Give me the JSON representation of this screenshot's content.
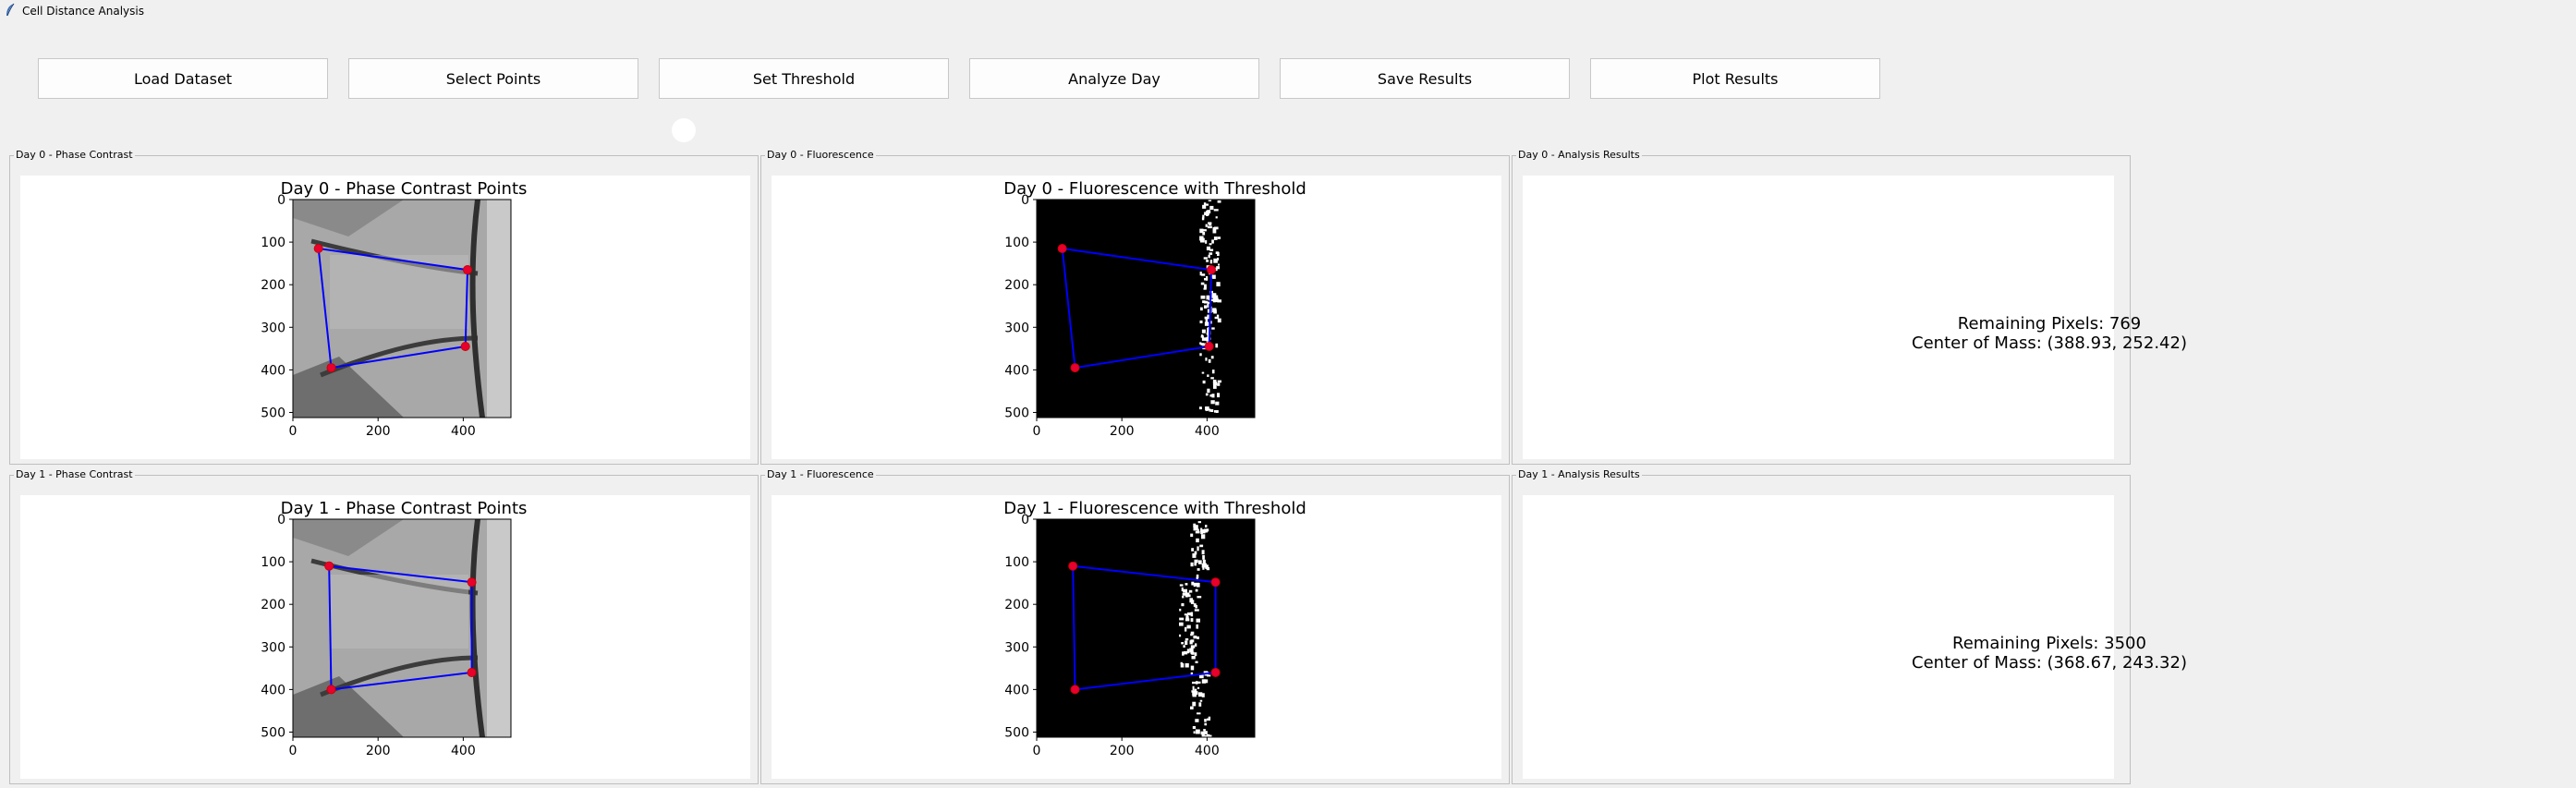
{
  "window": {
    "title": "Cell Distance Analysis"
  },
  "toolbar": {
    "load": "Load Dataset",
    "select": "Select Points",
    "threshold": "Set Threshold",
    "analyze": "Analyze Day",
    "save": "Save Results",
    "plot": "Plot Results"
  },
  "days": [
    {
      "phase_frame": "Day 0 - Phase Contrast",
      "fluor_frame": "Day 0 - Fluorescence",
      "results_frame": "Day 0 - Analysis Results",
      "phase_title": "Day 0 - Phase Contrast Points",
      "fluor_title": "Day 0 - Fluorescence with Threshold",
      "remaining": "Remaining Pixels: 769",
      "center": "Center of Mass: (388.93, 252.42)",
      "points": [
        [
          60,
          115
        ],
        [
          410,
          165
        ],
        [
          405,
          345
        ],
        [
          90,
          395
        ]
      ]
    },
    {
      "phase_frame": "Day 1 - Phase Contrast",
      "fluor_frame": "Day 1 - Fluorescence",
      "results_frame": "Day 1 - Analysis Results",
      "phase_title": "Day 1 - Phase Contrast Points",
      "fluor_title": "Day 1 - Fluorescence with Threshold",
      "remaining": "Remaining Pixels: 3500",
      "center": "Center of Mass: (368.67, 243.32)",
      "points": [
        [
          85,
          110
        ],
        [
          420,
          148
        ],
        [
          420,
          360
        ],
        [
          90,
          400
        ]
      ]
    }
  ],
  "axes": {
    "y_ticks": [
      "0",
      "100",
      "200",
      "300",
      "400",
      "500"
    ],
    "x_ticks": [
      "0",
      "200",
      "400"
    ],
    "x_tick_values": [
      0,
      200,
      400
    ],
    "y_tick_values": [
      0,
      100,
      200,
      300,
      400,
      500
    ],
    "extent": 512
  },
  "colors": {
    "polygon": "#0000ff",
    "marker": "#e8002e",
    "marker_edge": "#cc0000"
  }
}
